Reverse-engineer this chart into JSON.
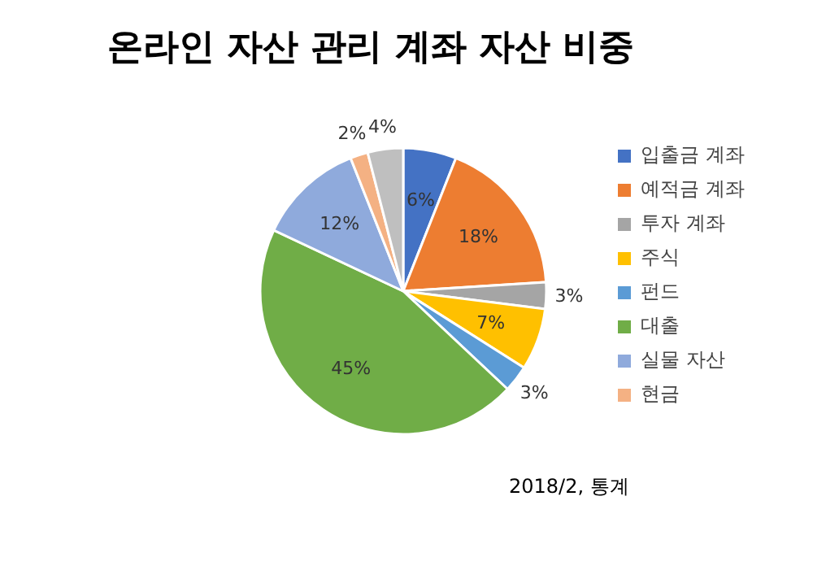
{
  "chart_data": {
    "type": "pie",
    "title": "온라인 자산 관리 계좌 자산 비중",
    "categories": [
      "입출금 계좌",
      "예적금 계좌",
      "투자 계좌",
      "주식",
      "펀드",
      "대출",
      "실물 자산",
      "현금",
      null
    ],
    "values": [
      6,
      18,
      3,
      7,
      3,
      45,
      12,
      2,
      4
    ],
    "value_labels": [
      "6%",
      "18%",
      "3%",
      "7%",
      "3%",
      "45%",
      "12%",
      "2%",
      "4%"
    ],
    "colors": [
      "#4472c4",
      "#ed7d31",
      "#a5a5a5",
      "#ffc000",
      "#5b9bd5",
      "#70ad47",
      "#8faadc",
      "#f4b183",
      "#bfbfbf"
    ],
    "legend": "right",
    "annotations": [
      "2018/2, 통계"
    ]
  }
}
